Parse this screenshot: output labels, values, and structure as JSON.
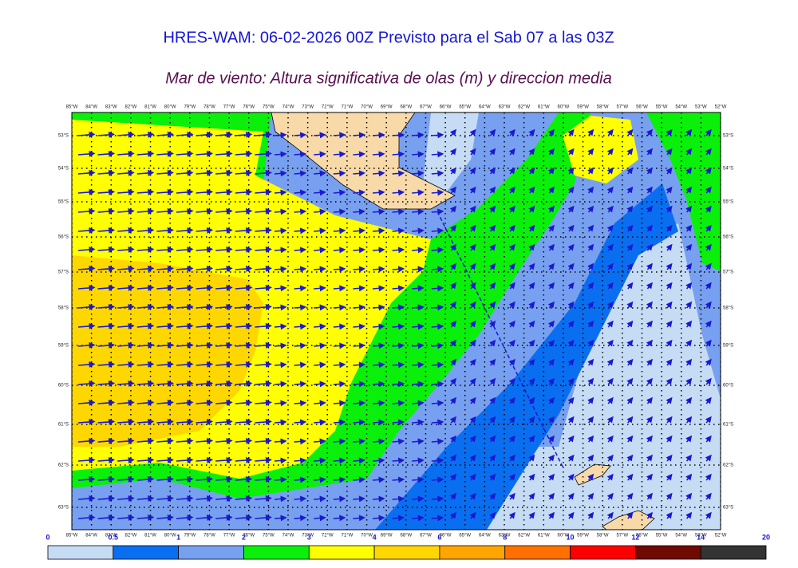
{
  "header": {
    "title": "HRES-WAM: 06-02-2026 00Z Previsto para el Sab 07 a las 03Z",
    "subtitle": "Mar de viento: Altura significativa de olas (m) y direccion media"
  },
  "map": {
    "lon_labels": [
      "85°W",
      "84°W",
      "83°W",
      "82°W",
      "81°W",
      "80°W",
      "79°W",
      "78°W",
      "77°W",
      "76°W",
      "75°W",
      "74°W",
      "73°W",
      "72°W",
      "71°W",
      "70°W",
      "69°W",
      "68°W",
      "67°W",
      "66°W",
      "65°W",
      "64°W",
      "63°W",
      "62°W",
      "61°W",
      "60°W",
      "59°W",
      "58°W",
      "57°W",
      "56°W",
      "55°W",
      "54°W",
      "53°W",
      "52°W"
    ],
    "lat_labels": [
      "53°S",
      "54°S",
      "55°S",
      "56°S",
      "57°S",
      "58°S",
      "59°S",
      "60°S",
      "61°S",
      "62°S",
      "63°S"
    ]
  },
  "colorbar": {
    "levels": [
      0,
      0.5,
      1,
      2,
      3,
      4,
      6,
      8,
      10,
      12,
      14,
      20
    ],
    "colors": [
      "#c6dcf5",
      "#0a6ef0",
      "#78a0f0",
      "#0af00a",
      "#ffff00",
      "#ffd700",
      "#ffa500",
      "#ff7000",
      "#ff0000",
      "#6e0a00",
      "#333333"
    ]
  }
}
